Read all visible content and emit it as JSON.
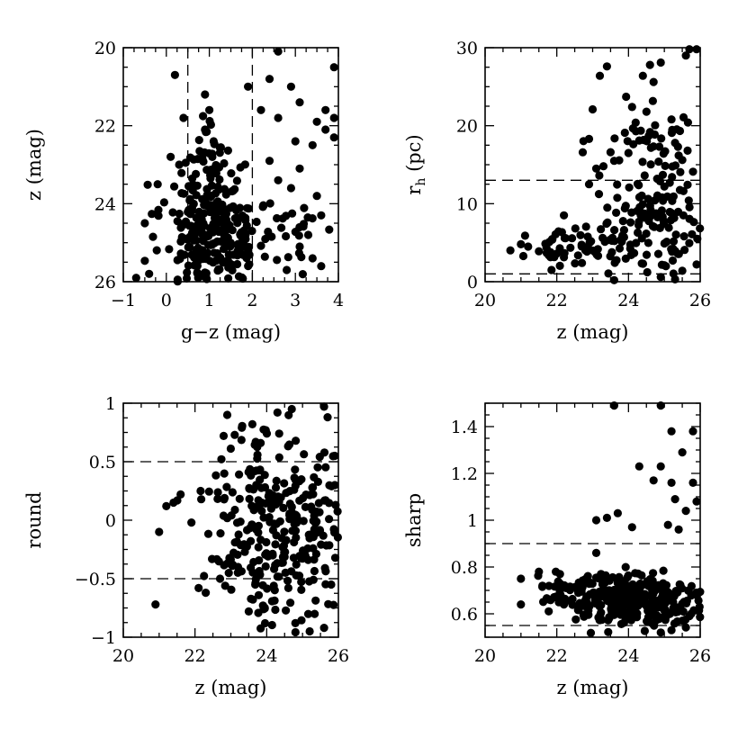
{
  "chart_data": [
    {
      "id": "gz_z",
      "type": "scatter",
      "xlabel": "g−z (mag)",
      "ylabel": "z (mag)",
      "xlim": [
        -1,
        4
      ],
      "ylim": [
        26,
        20
      ],
      "xticks": [
        -1,
        0,
        1,
        2,
        3,
        4
      ],
      "xtick_labels": [
        "−1",
        "0",
        "1",
        "2",
        "3",
        "4"
      ],
      "yticks": [
        20,
        22,
        24,
        26
      ],
      "ytick_labels": [
        "20",
        "22",
        "24",
        "26"
      ],
      "hlines": [],
      "vlines": [
        0.5,
        2.0
      ],
      "seed": 11,
      "points": [
        [
          2.6,
          20.1
        ],
        [
          0.2,
          20.7
        ],
        [
          3.9,
          20.5
        ],
        [
          2.9,
          21.0
        ],
        [
          2.4,
          20.8
        ],
        [
          1.9,
          21.0
        ],
        [
          3.1,
          21.4
        ],
        [
          3.7,
          21.6
        ],
        [
          3.9,
          21.8
        ],
        [
          3.5,
          21.9
        ],
        [
          2.2,
          21.6
        ],
        [
          2.6,
          21.8
        ],
        [
          3.0,
          22.4
        ],
        [
          3.4,
          22.5
        ],
        [
          3.9,
          22.3
        ],
        [
          3.7,
          22.1
        ],
        [
          0.4,
          21.8
        ],
        [
          0.9,
          21.2
        ],
        [
          1.0,
          21.6
        ],
        [
          0.9,
          22.1
        ],
        [
          1.1,
          22.4
        ],
        [
          2.4,
          22.9
        ],
        [
          2.6,
          23.4
        ],
        [
          3.1,
          23.1
        ],
        [
          2.9,
          23.6
        ],
        [
          3.5,
          23.8
        ],
        [
          3.6,
          24.3
        ],
        [
          3.3,
          24.8
        ],
        [
          3.1,
          25.1
        ],
        [
          3.4,
          25.4
        ],
        [
          3.6,
          25.6
        ],
        [
          2.8,
          25.7
        ],
        [
          -0.7,
          25.9
        ],
        [
          -0.4,
          25.8
        ],
        [
          -0.5,
          24.5
        ],
        [
          -0.2,
          23.5
        ],
        [
          0.1,
          22.8
        ],
        [
          0.3,
          23.0
        ]
      ],
      "clusters": [
        {
          "cx": 1.05,
          "cy": 24.8,
          "sx": 0.55,
          "sy": 0.75,
          "n": 230
        },
        {
          "cx": 1.0,
          "cy": 23.2,
          "sx": 0.2,
          "sy": 0.6,
          "n": 45
        },
        {
          "cx": 2.3,
          "cy": 24.8,
          "sx": 0.7,
          "sy": 0.6,
          "n": 45
        }
      ]
    },
    {
      "id": "z_rh",
      "type": "scatter",
      "xlabel": "z (mag)",
      "ylabel": "r",
      "ylabel_sub": "h",
      "ylabel_suffix": " (pc)",
      "xlim": [
        20,
        26
      ],
      "ylim": [
        0,
        30
      ],
      "xticks": [
        20,
        22,
        24,
        26
      ],
      "xtick_labels": [
        "20",
        "22",
        "24",
        "26"
      ],
      "yticks": [
        0,
        10,
        20,
        30
      ],
      "ytick_labels": [
        "0",
        "10",
        "20",
        "30"
      ],
      "hlines": [
        1.0,
        13.0
      ],
      "vlines": [],
      "seed": 23,
      "points": [
        [
          25.7,
          29.8
        ],
        [
          25.9,
          29.8
        ],
        [
          25.6,
          29.0
        ],
        [
          24.9,
          28.1
        ],
        [
          24.6,
          27.8
        ],
        [
          23.4,
          27.6
        ],
        [
          23.2,
          26.4
        ],
        [
          24.4,
          26.4
        ],
        [
          24.7,
          25.6
        ],
        [
          23.0,
          22.1
        ],
        [
          24.1,
          22.4
        ],
        [
          24.5,
          21.8
        ],
        [
          24.2,
          20.4
        ],
        [
          25.2,
          20.8
        ],
        [
          23.9,
          19.1
        ],
        [
          23.5,
          16.6
        ],
        [
          24.0,
          16.5
        ],
        [
          22.9,
          18.3
        ],
        [
          24.3,
          18.1
        ],
        [
          25.3,
          17.8
        ],
        [
          23.1,
          14.5
        ],
        [
          23.3,
          14.8
        ],
        [
          23.6,
          15.5
        ],
        [
          25.5,
          15.6
        ],
        [
          25.8,
          14.1
        ],
        [
          24.8,
          13.2
        ],
        [
          25.0,
          12.2
        ],
        [
          22.9,
          12.5
        ],
        [
          23.9,
          9.4
        ],
        [
          22.2,
          8.5
        ],
        [
          21.0,
          4.8
        ],
        [
          21.2,
          4.5
        ],
        [
          21.5,
          3.9
        ],
        [
          21.8,
          3.3
        ],
        [
          22.0,
          3.6
        ],
        [
          25.9,
          2.2
        ],
        [
          25.5,
          1.4
        ],
        [
          24.9,
          0.6
        ],
        [
          25.3,
          0.3
        ],
        [
          23.6,
          0.2
        ]
      ],
      "clusters": [
        {
          "cx": 22.6,
          "cy": 4.3,
          "sx": 0.7,
          "sy": 1.1,
          "n": 55
        },
        {
          "cx": 24.6,
          "cy": 7.0,
          "sx": 0.8,
          "sy": 3.8,
          "n": 110
        },
        {
          "cx": 24.5,
          "cy": 17.0,
          "sx": 0.7,
          "sy": 4.5,
          "n": 45
        }
      ]
    },
    {
      "id": "z_round",
      "type": "scatter",
      "xlabel": "z (mag)",
      "ylabel": "round",
      "xlim": [
        20,
        26
      ],
      "ylim": [
        -1,
        1
      ],
      "xticks": [
        20,
        22,
        24,
        26
      ],
      "xtick_labels": [
        "20",
        "22",
        "24",
        "26"
      ],
      "yticks": [
        -1,
        -0.5,
        0,
        0.5,
        1
      ],
      "ytick_labels": [
        "−1",
        "−0.5",
        "0",
        "0.5",
        "1"
      ],
      "hlines": [
        -0.5,
        0.5
      ],
      "vlines": [],
      "seed": 37,
      "points": [
        [
          20.9,
          -0.72
        ],
        [
          21.0,
          -0.1
        ],
        [
          21.2,
          0.12
        ],
        [
          21.4,
          0.15
        ],
        [
          21.6,
          0.22
        ],
        [
          21.9,
          -0.02
        ],
        [
          22.1,
          -0.58
        ],
        [
          22.3,
          -0.62
        ],
        [
          22.9,
          0.9
        ],
        [
          23.6,
          0.82
        ],
        [
          24.3,
          0.92
        ],
        [
          24.7,
          0.95
        ],
        [
          25.6,
          0.97
        ],
        [
          25.7,
          0.88
        ],
        [
          25.9,
          0.55
        ],
        [
          25.6,
          -0.92
        ],
        [
          25.2,
          -0.95
        ],
        [
          24.8,
          -0.88
        ],
        [
          23.5,
          -0.78
        ],
        [
          22.8,
          0.72
        ],
        [
          23.2,
          -0.4
        ],
        [
          22.7,
          -0.5
        ],
        [
          25.9,
          0.3
        ],
        [
          25.8,
          -0.55
        ]
      ],
      "clusters": [
        {
          "cx": 24.3,
          "cy": 0.0,
          "sx": 0.9,
          "sy": 0.42,
          "n": 290
        }
      ]
    },
    {
      "id": "z_sharp",
      "type": "scatter",
      "xlabel": "z (mag)",
      "ylabel": "sharp",
      "xlim": [
        20,
        26
      ],
      "ylim": [
        0.5,
        1.5
      ],
      "xticks": [
        20,
        22,
        24,
        26
      ],
      "xtick_labels": [
        "20",
        "22",
        "24",
        "26"
      ],
      "yticks": [
        0.6,
        0.8,
        1.0,
        1.2,
        1.4
      ],
      "ytick_labels": [
        "0.6",
        "0.8",
        "1",
        "1.2",
        "1.4"
      ],
      "hlines": [
        0.55,
        0.9
      ],
      "vlines": [],
      "seed": 51,
      "points": [
        [
          23.6,
          1.49
        ],
        [
          24.9,
          1.49
        ],
        [
          25.8,
          1.38
        ],
        [
          25.2,
          1.38
        ],
        [
          25.5,
          1.29
        ],
        [
          24.9,
          1.23
        ],
        [
          24.3,
          1.23
        ],
        [
          25.2,
          1.16
        ],
        [
          25.8,
          1.16
        ],
        [
          24.7,
          1.17
        ],
        [
          25.9,
          1.08
        ],
        [
          25.3,
          1.09
        ],
        [
          25.6,
          1.04
        ],
        [
          23.1,
          1.0
        ],
        [
          23.4,
          1.01
        ],
        [
          23.7,
          1.03
        ],
        [
          25.1,
          0.98
        ],
        [
          25.4,
          0.96
        ],
        [
          24.1,
          0.97
        ],
        [
          23.1,
          0.86
        ],
        [
          21.0,
          0.75
        ],
        [
          21.0,
          0.64
        ],
        [
          21.5,
          0.78
        ],
        [
          21.6,
          0.72
        ],
        [
          21.8,
          0.66
        ],
        [
          22.2,
          0.64
        ],
        [
          25.9,
          0.68
        ],
        [
          25.7,
          0.59
        ],
        [
          25.2,
          0.53
        ],
        [
          24.9,
          0.52
        ]
      ],
      "clusters": [
        {
          "cx": 24.2,
          "cy": 0.655,
          "sx": 0.9,
          "sy": 0.055,
          "n": 290
        },
        {
          "cx": 22.6,
          "cy": 0.69,
          "sx": 0.6,
          "sy": 0.045,
          "n": 40
        }
      ]
    }
  ]
}
